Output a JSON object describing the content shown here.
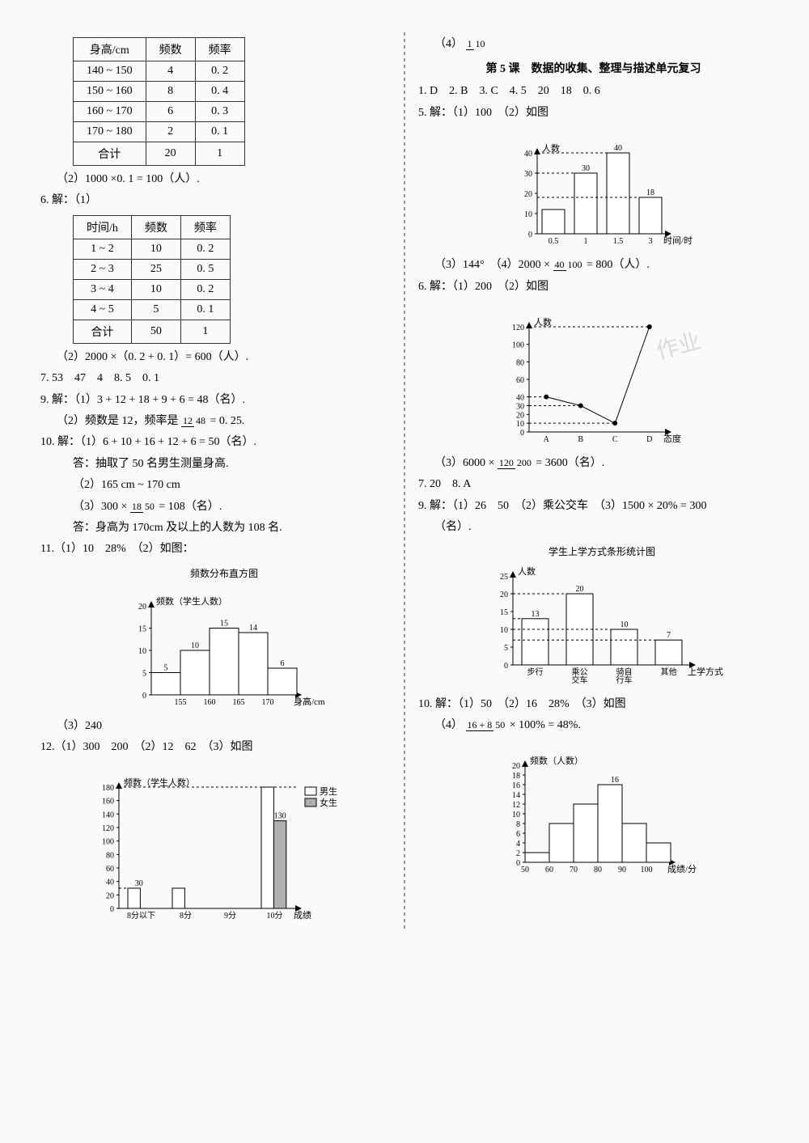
{
  "left": {
    "table1": {
      "headers": [
        "身高/cm",
        "频数",
        "频率"
      ],
      "rows": [
        [
          "140 ~ 150",
          "4",
          "0. 2"
        ],
        [
          "150 ~ 160",
          "8",
          "0. 4"
        ],
        [
          "160 ~ 170",
          "6",
          "0. 3"
        ],
        [
          "170 ~ 180",
          "2",
          "0. 1"
        ],
        [
          "合计",
          "20",
          "1"
        ]
      ]
    },
    "l1": "（2）1000 ×0. 1 = 100（人）.",
    "l2": "6. 解：（1）",
    "table2": {
      "headers": [
        "时间/h",
        "频数",
        "频率"
      ],
      "rows": [
        [
          "1 ~ 2",
          "10",
          "0. 2"
        ],
        [
          "2 ~ 3",
          "25",
          "0. 5"
        ],
        [
          "3 ~ 4",
          "10",
          "0. 2"
        ],
        [
          "4 ~ 5",
          "5",
          "0. 1"
        ],
        [
          "合计",
          "50",
          "1"
        ]
      ]
    },
    "l3": "（2）2000 ×（0. 2 + 0. 1）= 600（人）.",
    "l4": "7. 53　47　4　8. 5　0. 1",
    "l5": "9. 解：（1）3 + 12 + 18 + 9 + 6 = 48（名）.",
    "l6_pre": "（2）频数是 12，频率是",
    "l6_frac_n": "12",
    "l6_frac_d": "48",
    "l6_post": " = 0. 25.",
    "l7": "10. 解：（1）6 + 10 + 16 + 12 + 6 = 50（名）.",
    "l8": "答：抽取了 50 名男生测量身高.",
    "l9": "（2）165 cm ~ 170 cm",
    "l10_pre": "（3）300 ×",
    "l10_frac_n": "18",
    "l10_frac_d": "50",
    "l10_post": " = 108（名）.",
    "l11": "答：身高为 170cm 及以上的人数为 108 名.",
    "l12": "11.（1）10　28%　（2）如图：",
    "chart11": {
      "title": "频数分布直方图",
      "ylabel": "频数（学生人数）",
      "xlabel": "身高/cm",
      "yticks": [
        0,
        5,
        10,
        15,
        20
      ],
      "xticks": [
        "155",
        "160",
        "165",
        "170"
      ],
      "bars": [
        5,
        10,
        15,
        14,
        6
      ],
      "bar_labels": [
        "5",
        "10",
        "15",
        "14",
        "6"
      ],
      "color": "#ffffff",
      "border": "#000000"
    },
    "l13": "（3）240",
    "l14": "12.（1）300　200　（2）12　62　（3）如图",
    "chart12": {
      "ylabel": "频数（学生人数）",
      "xlabel": "成绩",
      "yticks": [
        0,
        20,
        40,
        60,
        80,
        100,
        120,
        140,
        160,
        180
      ],
      "xticks": [
        "8分以下",
        "8分",
        "9分",
        "10分"
      ],
      "legend": [
        "男生",
        "女生"
      ],
      "legend_colors": [
        "#ffffff",
        "#b0b0b0"
      ],
      "male": [
        30,
        30,
        null,
        180
      ],
      "female": [
        null,
        null,
        null,
        130
      ],
      "annot": [
        "30",
        "",
        "",
        "130"
      ]
    }
  },
  "right": {
    "r0_pre": "（4）",
    "r0_frac_n": "1",
    "r0_frac_d": "10",
    "section": "第 5 课　数据的收集、整理与描述单元复习",
    "r1": "1. D　2. B　3. C　4. 5　20　18　0. 6",
    "r2": "5. 解：（1）100　（2）如图",
    "chart5": {
      "ylabel": "人数",
      "xlabel": "时间/时",
      "yticks": [
        0,
        10,
        20,
        30,
        40
      ],
      "xticks": [
        "0.5",
        "1",
        "1.5",
        "3"
      ],
      "bars": [
        12,
        30,
        40,
        18
      ],
      "bar_labels": [
        "",
        "30",
        "40",
        "18"
      ],
      "color": "#ffffff",
      "border": "#000000"
    },
    "r3_pre": "（3）144°　（4）2000 ×",
    "r3_frac_n": "40",
    "r3_frac_d": "100",
    "r3_post": " = 800（人）.",
    "r4": "6. 解：（1）200　（2）如图",
    "chart6": {
      "ylabel": "人数",
      "xlabel": "态度",
      "yticks": [
        0,
        10,
        20,
        30,
        40,
        60,
        80,
        100,
        120
      ],
      "xticks": [
        "A",
        "B",
        "C",
        "D"
      ],
      "points": [
        40,
        30,
        10,
        120
      ]
    },
    "r5_pre": "（3）6000 ×",
    "r5_frac_n": "120",
    "r5_frac_d": "200",
    "r5_post": " = 3600（名）.",
    "r6": "7. 20　8. A",
    "r7": "9. 解：（1）26　50　（2）乘公交车　（3）1500 × 20% = 300",
    "r7b": "（名）.",
    "chart9": {
      "title": "学生上学方式条形统计图",
      "ylabel": "人数",
      "xlabel": "上学方式",
      "yticks": [
        0,
        5,
        10,
        15,
        20,
        25
      ],
      "xticks": [
        "步行",
        "乘公\n交车",
        "骑自\n行车",
        "其他"
      ],
      "bars": [
        13,
        20,
        10,
        7
      ],
      "bar_labels": [
        "13",
        "20",
        "10",
        "7"
      ],
      "color": "#ffffff",
      "border": "#000000"
    },
    "r8": "10. 解：（1）50　（2）16　28%　（3）如图",
    "r9_pre": "（4）",
    "r9_frac_n": "16 + 8",
    "r9_frac_d": "50",
    "r9_post": " × 100% = 48%.",
    "chart10": {
      "ylabel": "频数（人数）",
      "xlabel": "成绩/分",
      "yticks": [
        0,
        2,
        4,
        6,
        8,
        10,
        12,
        14,
        16,
        18,
        20
      ],
      "xticks": [
        "50",
        "60",
        "70",
        "80",
        "90",
        "100"
      ],
      "bars": [
        2,
        8,
        12,
        16,
        8,
        4
      ],
      "annot_label": "16",
      "color": "#ffffff",
      "border": "#000000"
    }
  }
}
